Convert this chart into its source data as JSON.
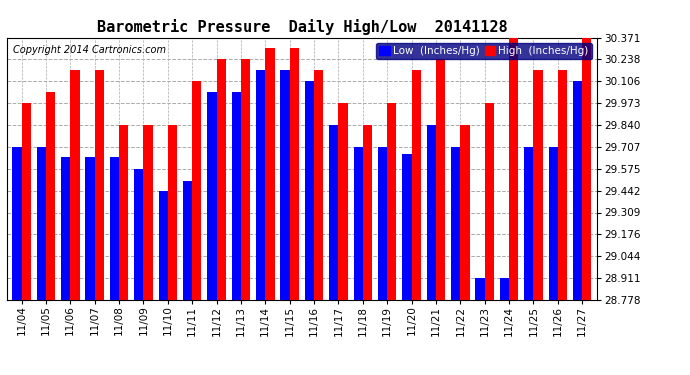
{
  "title": "Barometric Pressure  Daily High/Low  20141128",
  "copyright": "Copyright 2014 Cartronics.com",
  "legend_low": "Low  (Inches/Hg)",
  "legend_high": "High  (Inches/Hg)",
  "dates": [
    "11/04",
    "11/05",
    "11/06",
    "11/07",
    "11/08",
    "11/09",
    "11/10",
    "11/11",
    "11/12",
    "11/13",
    "11/14",
    "11/15",
    "11/16",
    "11/17",
    "11/18",
    "11/19",
    "11/20",
    "11/21",
    "11/22",
    "11/23",
    "11/24",
    "11/25",
    "11/26",
    "11/27"
  ],
  "low_values": [
    29.707,
    29.707,
    29.648,
    29.648,
    29.648,
    29.575,
    29.442,
    29.5,
    30.04,
    30.04,
    30.172,
    30.172,
    30.106,
    29.84,
    29.707,
    29.707,
    29.665,
    29.84,
    29.707,
    28.911,
    28.911,
    29.707,
    29.707,
    30.106
  ],
  "high_values": [
    29.973,
    30.04,
    30.172,
    30.172,
    29.84,
    29.84,
    29.84,
    30.106,
    30.238,
    30.238,
    30.305,
    30.305,
    30.172,
    29.973,
    29.84,
    29.973,
    30.172,
    30.238,
    29.84,
    29.973,
    30.371,
    30.172,
    30.172,
    30.371
  ],
  "ylim_min": 28.778,
  "ylim_max": 30.371,
  "yticks": [
    28.778,
    28.911,
    29.044,
    29.176,
    29.309,
    29.442,
    29.575,
    29.707,
    29.84,
    29.973,
    30.106,
    30.238,
    30.371
  ],
  "low_color": "#0000ff",
  "high_color": "#ff0000",
  "bg_color": "#ffffff",
  "grid_color": "#aaaaaa",
  "bar_width": 0.38,
  "title_fontsize": 11,
  "tick_fontsize": 7.5,
  "copyright_fontsize": 7
}
